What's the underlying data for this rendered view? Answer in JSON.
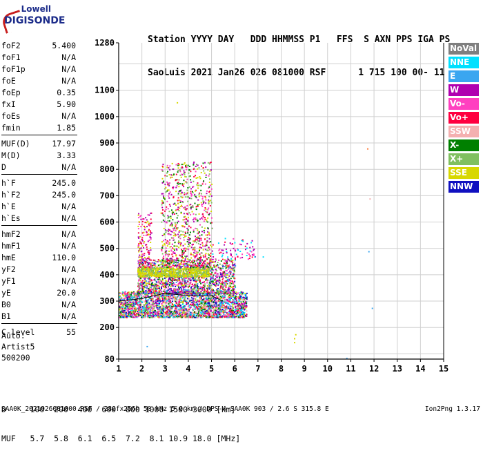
{
  "logo": {
    "top": "Lowell",
    "bottom": "DIGISONDE"
  },
  "header": {
    "line1": "Station YYYY DAY   DDD HHMMSS P1   FFS  S AXN PPS IGA PS",
    "line2": "SaoLuis 2021 Jan26 026 081000 RSF      1 715 100 00- 11"
  },
  "params": [
    {
      "k": "foF2",
      "v": "5.400"
    },
    {
      "k": "foF1",
      "v": "N/A"
    },
    {
      "k": "foF1p",
      "v": "N/A"
    },
    {
      "k": "foE",
      "v": "N/A"
    },
    {
      "k": "foEp",
      "v": "0.35"
    },
    {
      "k": "fxI",
      "v": "5.90"
    },
    {
      "k": "foEs",
      "v": "N/A"
    },
    {
      "k": "fmin",
      "v": "1.85"
    },
    {
      "k": "MUF(D)",
      "v": "17.97"
    },
    {
      "k": "M(D)",
      "v": "3.33"
    },
    {
      "k": "D",
      "v": "N/A"
    },
    {
      "k": "h`F",
      "v": "245.0"
    },
    {
      "k": "h`F2",
      "v": "245.0"
    },
    {
      "k": "h`E",
      "v": "N/A"
    },
    {
      "k": "h`Es",
      "v": "N/A"
    },
    {
      "k": "hmF2",
      "v": "N/A"
    },
    {
      "k": "hmF1",
      "v": "N/A"
    },
    {
      "k": "hmE",
      "v": "110.0"
    },
    {
      "k": "yF2",
      "v": "N/A"
    },
    {
      "k": "yF1",
      "v": "N/A"
    },
    {
      "k": "yE",
      "v": "20.0"
    },
    {
      "k": "B0",
      "v": "N/A"
    },
    {
      "k": "B1",
      "v": "N/A"
    },
    {
      "k": "C-level",
      "v": "55"
    }
  ],
  "auto": {
    "l1": "Auto:",
    "l2": "Artist5",
    "l3": "500200"
  },
  "legend": [
    {
      "label": "NoVal",
      "color": "#7f7f7f"
    },
    {
      "label": "NNE",
      "color": "#00e0ff"
    },
    {
      "label": "E",
      "color": "#3aa6f0"
    },
    {
      "label": "W",
      "color": "#b000b0"
    },
    {
      "label": "Vo-",
      "color": "#ff40c0"
    },
    {
      "label": "Vo+",
      "color": "#ff0040"
    },
    {
      "label": "SSW",
      "color": "#f4b0b0"
    },
    {
      "label": "X-",
      "color": "#008000"
    },
    {
      "label": "X+",
      "color": "#80c060"
    },
    {
      "label": "SSE",
      "color": "#d8d800"
    },
    {
      "label": "NNW",
      "color": "#1010c0"
    }
  ],
  "dtable": {
    "row1": "D     100  200  400  600  800 1000 1500 3000 [km]",
    "row2": "MUF   5.7  5.8  6.1  6.5  7.2  8.1 10.9 18.0 [MHz]"
  },
  "footer": "SAA0K_2021026081000.RSF / 280fx256h 50 kHz 5.0 km / DPS-4 SAA0K 903 / 2.6 S 315.8 E",
  "version": "Ion2Png 1.3.17",
  "chart_data": {
    "type": "scatter",
    "x_ticks": [
      1,
      2,
      3,
      4,
      5,
      6,
      7,
      8,
      9,
      10,
      11,
      12,
      13,
      14,
      15
    ],
    "y_ticks": [
      80,
      200,
      300,
      400,
      500,
      600,
      700,
      800,
      900,
      1000,
      1100,
      1280
    ],
    "xlim": [
      1,
      15
    ],
    "ylim": [
      80,
      1280
    ],
    "grid": true,
    "clusters": [
      {
        "x": [
          1.0,
          6.5
        ],
        "y": [
          240,
          340
        ],
        "n": 2600,
        "colors": [
          "#b000b0",
          "#ff40c0",
          "#ff0040",
          "#80c060",
          "#008000",
          "#d8d800",
          "#3aa6f0",
          "#00e0ff",
          "#1010c0",
          "#f4b0b0"
        ]
      },
      {
        "x": [
          1.8,
          6.0
        ],
        "y": [
          330,
          460
        ],
        "n": 1500,
        "colors": [
          "#b000b0",
          "#ff40c0",
          "#ff0040",
          "#80c060",
          "#d8d800",
          "#008000",
          "#3aa6f0",
          "#1010c0"
        ]
      },
      {
        "x": [
          1.8,
          4.9
        ],
        "y": [
          395,
          430
        ],
        "n": 700,
        "colors": [
          "#d8d800",
          "#d8d800",
          "#80c060"
        ]
      },
      {
        "x": [
          2.8,
          5.0
        ],
        "y": [
          430,
          830
        ],
        "n": 900,
        "colors": [
          "#d8d800",
          "#80c060",
          "#b000b0",
          "#ff40c0",
          "#008000",
          "#ff0040"
        ]
      },
      {
        "x": [
          1.8,
          2.4
        ],
        "y": [
          430,
          640
        ],
        "n": 150,
        "colors": [
          "#ff0040",
          "#b000b0",
          "#d8d800",
          "#ff40c0"
        ]
      },
      {
        "x": [
          5.0,
          6.9
        ],
        "y": [
          460,
          540
        ],
        "n": 80,
        "colors": [
          "#b000b0",
          "#ff40c0",
          "#ff0040",
          "#00e0ff"
        ]
      }
    ],
    "trace": [
      [
        1.0,
        300
      ],
      [
        2.0,
        310
      ],
      [
        3.0,
        330
      ],
      [
        4.0,
        320
      ],
      [
        5.0,
        320
      ],
      [
        5.5,
        300
      ]
    ],
    "points": [
      {
        "x": 8.55,
        "y": 160,
        "color": "#d8d800"
      },
      {
        "x": 8.6,
        "y": 175,
        "color": "#d8d800"
      },
      {
        "x": 8.55,
        "y": 145,
        "color": "#d8d800"
      },
      {
        "x": 11.7,
        "y": 880,
        "color": "#ff8040"
      },
      {
        "x": 11.8,
        "y": 690,
        "color": "#f4b0b0"
      },
      {
        "x": 11.75,
        "y": 490,
        "color": "#3aa6f0"
      },
      {
        "x": 11.9,
        "y": 275,
        "color": "#3aa6f0"
      },
      {
        "x": 10.8,
        "y": 85,
        "color": "#3aa6f0"
      },
      {
        "x": 7.2,
        "y": 470,
        "color": "#00e0ff"
      },
      {
        "x": 3.5,
        "y": 1055,
        "color": "#d8d800"
      },
      {
        "x": 2.2,
        "y": 130,
        "color": "#3aa6f0"
      }
    ]
  }
}
